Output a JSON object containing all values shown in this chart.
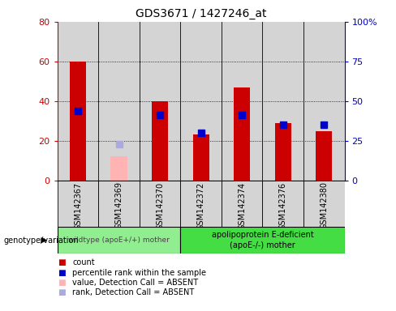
{
  "title": "GDS3671 / 1427246_at",
  "samples": [
    "GSM142367",
    "GSM142369",
    "GSM142370",
    "GSM142372",
    "GSM142374",
    "GSM142376",
    "GSM142380"
  ],
  "count_values": [
    60,
    null,
    40,
    23,
    47,
    29,
    25
  ],
  "count_absent_values": [
    null,
    12,
    null,
    null,
    null,
    null,
    null
  ],
  "rank_values": [
    44,
    null,
    41,
    30,
    41,
    35,
    35
  ],
  "rank_absent_values": [
    null,
    23,
    null,
    null,
    null,
    null,
    null
  ],
  "group1_n": 3,
  "group2_n": 4,
  "group1_label": "wildtype (apoE+/+) mother",
  "group2_label": "apolipoprotein E-deficient\n(apoE-/-) mother",
  "genotype_label": "genotype/variation",
  "ylim_left": [
    0,
    80
  ],
  "ylim_right": [
    0,
    100
  ],
  "yticks_left": [
    0,
    20,
    40,
    60,
    80
  ],
  "yticks_right": [
    0,
    25,
    50,
    75,
    100
  ],
  "ytick_labels_left": [
    "0",
    "20",
    "40",
    "60",
    "80"
  ],
  "ytick_labels_right": [
    "0",
    "25",
    "50",
    "75",
    "100%"
  ],
  "color_count": "#cc0000",
  "color_count_absent": "#ffb3b3",
  "color_rank": "#0000cc",
  "color_rank_absent": "#aaaadd",
  "color_col_bg": "#d4d4d4",
  "color_group1_bg": "#90ee90",
  "color_group2_bg": "#44dd44",
  "bar_width": 0.4,
  "marker_size": 6,
  "legend_items": [
    [
      "#cc0000",
      "count"
    ],
    [
      "#0000cc",
      "percentile rank within the sample"
    ],
    [
      "#ffb3b3",
      "value, Detection Call = ABSENT"
    ],
    [
      "#aaaadd",
      "rank, Detection Call = ABSENT"
    ]
  ]
}
